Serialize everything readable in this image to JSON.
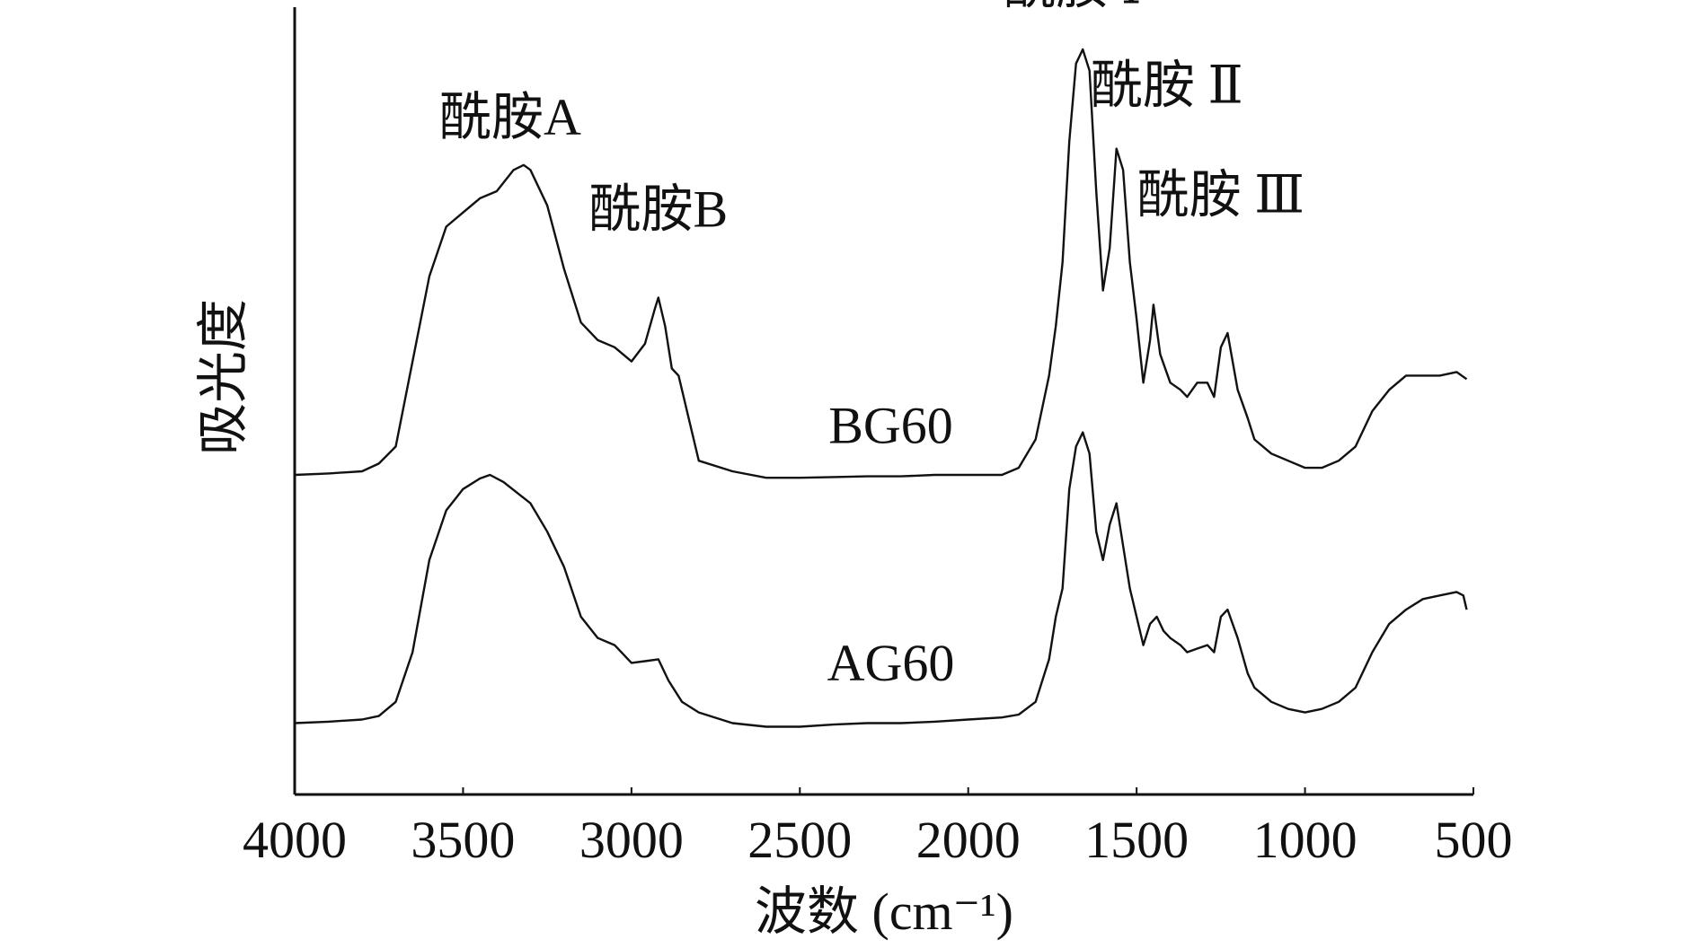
{
  "chart_data": {
    "type": "line",
    "title": "",
    "xlabel": "波数 (cm⁻¹)",
    "ylabel": "吸光度",
    "x_reversed": true,
    "xlim": [
      4000,
      500
    ],
    "ylim": [
      0,
      1.0
    ],
    "x_ticks": [
      4000,
      3500,
      3000,
      2500,
      2000,
      1500,
      1000,
      500
    ],
    "x_tick_labels": [
      "4000",
      "3500",
      "3000",
      "2500",
      "2000",
      "1500",
      "1000",
      "500"
    ],
    "y_ticks_shown": false,
    "grid": false,
    "legend": "none",
    "line_color": "#111111",
    "series": [
      {
        "name": "BG60",
        "points": [
          [
            4000,
            0.4
          ],
          [
            3900,
            0.402
          ],
          [
            3800,
            0.405
          ],
          [
            3750,
            0.416
          ],
          [
            3700,
            0.44
          ],
          [
            3650,
            0.56
          ],
          [
            3600,
            0.68
          ],
          [
            3550,
            0.75
          ],
          [
            3500,
            0.77
          ],
          [
            3450,
            0.79
          ],
          [
            3400,
            0.8
          ],
          [
            3350,
            0.83
          ],
          [
            3320,
            0.837
          ],
          [
            3300,
            0.83
          ],
          [
            3250,
            0.78
          ],
          [
            3200,
            0.69
          ],
          [
            3150,
            0.615
          ],
          [
            3100,
            0.59
          ],
          [
            3050,
            0.58
          ],
          [
            3000,
            0.56
          ],
          [
            2960,
            0.585
          ],
          [
            2930,
            0.635
          ],
          [
            2920,
            0.65
          ],
          [
            2900,
            0.61
          ],
          [
            2880,
            0.55
          ],
          [
            2860,
            0.54
          ],
          [
            2840,
            0.5
          ],
          [
            2800,
            0.42
          ],
          [
            2700,
            0.405
          ],
          [
            2600,
            0.396
          ],
          [
            2500,
            0.396
          ],
          [
            2400,
            0.397
          ],
          [
            2300,
            0.398
          ],
          [
            2200,
            0.398
          ],
          [
            2100,
            0.4
          ],
          [
            2000,
            0.4
          ],
          [
            1900,
            0.4
          ],
          [
            1850,
            0.41
          ],
          [
            1800,
            0.45
          ],
          [
            1760,
            0.54
          ],
          [
            1740,
            0.61
          ],
          [
            1720,
            0.7
          ],
          [
            1700,
            0.87
          ],
          [
            1680,
            0.98
          ],
          [
            1660,
            1.0
          ],
          [
            1640,
            0.97
          ],
          [
            1620,
            0.8
          ],
          [
            1600,
            0.66
          ],
          [
            1580,
            0.72
          ],
          [
            1560,
            0.86
          ],
          [
            1540,
            0.83
          ],
          [
            1520,
            0.7
          ],
          [
            1500,
            0.62
          ],
          [
            1480,
            0.53
          ],
          [
            1460,
            0.59
          ],
          [
            1450,
            0.64
          ],
          [
            1430,
            0.57
          ],
          [
            1400,
            0.53
          ],
          [
            1370,
            0.52
          ],
          [
            1350,
            0.51
          ],
          [
            1320,
            0.53
          ],
          [
            1290,
            0.53
          ],
          [
            1270,
            0.51
          ],
          [
            1250,
            0.58
          ],
          [
            1230,
            0.6
          ],
          [
            1200,
            0.52
          ],
          [
            1170,
            0.48
          ],
          [
            1150,
            0.45
          ],
          [
            1100,
            0.43
          ],
          [
            1050,
            0.42
          ],
          [
            1000,
            0.41
          ],
          [
            950,
            0.41
          ],
          [
            900,
            0.42
          ],
          [
            850,
            0.44
          ],
          [
            800,
            0.49
          ],
          [
            750,
            0.52
          ],
          [
            700,
            0.54
          ],
          [
            650,
            0.54
          ],
          [
            600,
            0.54
          ],
          [
            550,
            0.545
          ],
          [
            520,
            0.535
          ]
        ]
      },
      {
        "name": "AG60",
        "points": [
          [
            4000,
            0.05
          ],
          [
            3900,
            0.052
          ],
          [
            3800,
            0.055
          ],
          [
            3750,
            0.06
          ],
          [
            3700,
            0.08
          ],
          [
            3650,
            0.15
          ],
          [
            3600,
            0.28
          ],
          [
            3550,
            0.35
          ],
          [
            3500,
            0.38
          ],
          [
            3450,
            0.395
          ],
          [
            3420,
            0.4
          ],
          [
            3380,
            0.39
          ],
          [
            3300,
            0.36
          ],
          [
            3250,
            0.32
          ],
          [
            3200,
            0.27
          ],
          [
            3150,
            0.2
          ],
          [
            3100,
            0.17
          ],
          [
            3050,
            0.16
          ],
          [
            3000,
            0.135
          ],
          [
            2950,
            0.138
          ],
          [
            2920,
            0.14
          ],
          [
            2890,
            0.11
          ],
          [
            2850,
            0.08
          ],
          [
            2800,
            0.065
          ],
          [
            2700,
            0.05
          ],
          [
            2600,
            0.045
          ],
          [
            2500,
            0.045
          ],
          [
            2400,
            0.048
          ],
          [
            2300,
            0.05
          ],
          [
            2200,
            0.05
          ],
          [
            2100,
            0.052
          ],
          [
            2000,
            0.055
          ],
          [
            1900,
            0.058
          ],
          [
            1850,
            0.062
          ],
          [
            1800,
            0.08
          ],
          [
            1760,
            0.14
          ],
          [
            1740,
            0.2
          ],
          [
            1720,
            0.24
          ],
          [
            1700,
            0.38
          ],
          [
            1680,
            0.44
          ],
          [
            1660,
            0.46
          ],
          [
            1640,
            0.43
          ],
          [
            1620,
            0.32
          ],
          [
            1600,
            0.28
          ],
          [
            1580,
            0.33
          ],
          [
            1560,
            0.36
          ],
          [
            1540,
            0.3
          ],
          [
            1520,
            0.24
          ],
          [
            1500,
            0.2
          ],
          [
            1480,
            0.16
          ],
          [
            1460,
            0.19
          ],
          [
            1440,
            0.2
          ],
          [
            1420,
            0.18
          ],
          [
            1400,
            0.17
          ],
          [
            1370,
            0.16
          ],
          [
            1350,
            0.15
          ],
          [
            1320,
            0.155
          ],
          [
            1290,
            0.16
          ],
          [
            1270,
            0.15
          ],
          [
            1250,
            0.2
          ],
          [
            1230,
            0.21
          ],
          [
            1200,
            0.17
          ],
          [
            1170,
            0.12
          ],
          [
            1150,
            0.1
          ],
          [
            1100,
            0.08
          ],
          [
            1050,
            0.07
          ],
          [
            1000,
            0.065
          ],
          [
            950,
            0.07
          ],
          [
            900,
            0.08
          ],
          [
            850,
            0.1
          ],
          [
            800,
            0.15
          ],
          [
            750,
            0.19
          ],
          [
            700,
            0.21
          ],
          [
            650,
            0.225
          ],
          [
            600,
            0.23
          ],
          [
            550,
            0.235
          ],
          [
            530,
            0.23
          ],
          [
            520,
            0.21
          ]
        ]
      }
    ],
    "series_labels": [
      {
        "text": "BG60",
        "x": 2230,
        "y": 0.445
      },
      {
        "text": "AG60",
        "x": 2230,
        "y": 0.11
      }
    ],
    "annotations": [
      {
        "text": "酰胺A",
        "x": 3360,
        "y": 0.88
      },
      {
        "text": "酰胺B",
        "x": 2920,
        "y": 0.75
      },
      {
        "text": "酰胺 Ⅰ",
        "x": 1690,
        "y": 1.065
      },
      {
        "text": "酰胺 Ⅱ",
        "x": 1410,
        "y": 0.925
      },
      {
        "text": "酰胺 Ⅲ",
        "x": 1250,
        "y": 0.77
      }
    ]
  }
}
